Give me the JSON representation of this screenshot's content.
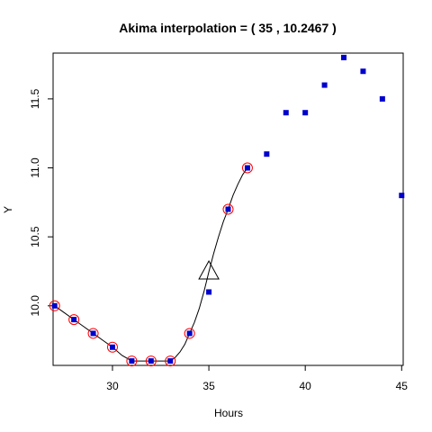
{
  "chart_data": {
    "type": "scatter",
    "title": "Akima interpolation = ( 35 , 10.2467 )",
    "xlabel": "Hours",
    "ylabel": "Y",
    "xlim": [
      26.92,
      45.08
    ],
    "ylim": [
      9.568,
      11.832
    ],
    "xticks": [
      30,
      35,
      40,
      45
    ],
    "yticks": [
      10.0,
      10.5,
      11.0,
      11.5
    ],
    "x_tick_labels": [
      "30",
      "35",
      "40",
      "45"
    ],
    "y_tick_labels": [
      "10.0",
      "10.5",
      "11.0",
      "11.5"
    ],
    "points": [
      {
        "x": 27,
        "y": 10.0
      },
      {
        "x": 28,
        "y": 9.9
      },
      {
        "x": 29,
        "y": 9.8
      },
      {
        "x": 30,
        "y": 9.7
      },
      {
        "x": 31,
        "y": 9.6
      },
      {
        "x": 32,
        "y": 9.6
      },
      {
        "x": 33,
        "y": 9.6
      },
      {
        "x": 34,
        "y": 9.8
      },
      {
        "x": 35,
        "y": 10.1
      },
      {
        "x": 36,
        "y": 10.7
      },
      {
        "x": 37,
        "y": 11.0
      },
      {
        "x": 38,
        "y": 11.1
      },
      {
        "x": 39,
        "y": 11.4
      },
      {
        "x": 40,
        "y": 11.4
      },
      {
        "x": 41,
        "y": 11.6
      },
      {
        "x": 42,
        "y": 11.8
      },
      {
        "x": 43,
        "y": 11.7
      },
      {
        "x": 44,
        "y": 11.5
      },
      {
        "x": 45,
        "y": 10.8
      }
    ],
    "circled_x": [
      27,
      28,
      29,
      30,
      31,
      32,
      33,
      34,
      36,
      37
    ],
    "curve_points": [
      [
        27,
        10.0
      ],
      [
        27.5,
        9.95
      ],
      [
        28,
        9.9
      ],
      [
        28.5,
        9.85
      ],
      [
        29,
        9.8
      ],
      [
        29.5,
        9.75
      ],
      [
        30,
        9.7
      ],
      [
        30.5,
        9.64
      ],
      [
        31,
        9.6
      ],
      [
        31.5,
        9.6
      ],
      [
        32,
        9.6
      ],
      [
        32.5,
        9.6
      ],
      [
        33,
        9.6
      ],
      [
        33.25,
        9.625
      ],
      [
        33.5,
        9.665
      ],
      [
        33.75,
        9.72
      ],
      [
        34,
        9.8
      ],
      [
        34.25,
        9.88
      ],
      [
        34.5,
        9.98
      ],
      [
        34.75,
        10.105
      ],
      [
        35,
        10.2467
      ],
      [
        35.25,
        10.38
      ],
      [
        35.5,
        10.5
      ],
      [
        35.75,
        10.61
      ],
      [
        36,
        10.7
      ],
      [
        36.25,
        10.8
      ],
      [
        36.5,
        10.88
      ],
      [
        36.75,
        10.95
      ],
      [
        37,
        11.0
      ]
    ],
    "highlight": {
      "x": 35,
      "y": 10.2467
    },
    "colors": {
      "point": "#0000cd",
      "circle": "#ff0000",
      "curve": "#000000",
      "triangle": "#000000"
    }
  }
}
